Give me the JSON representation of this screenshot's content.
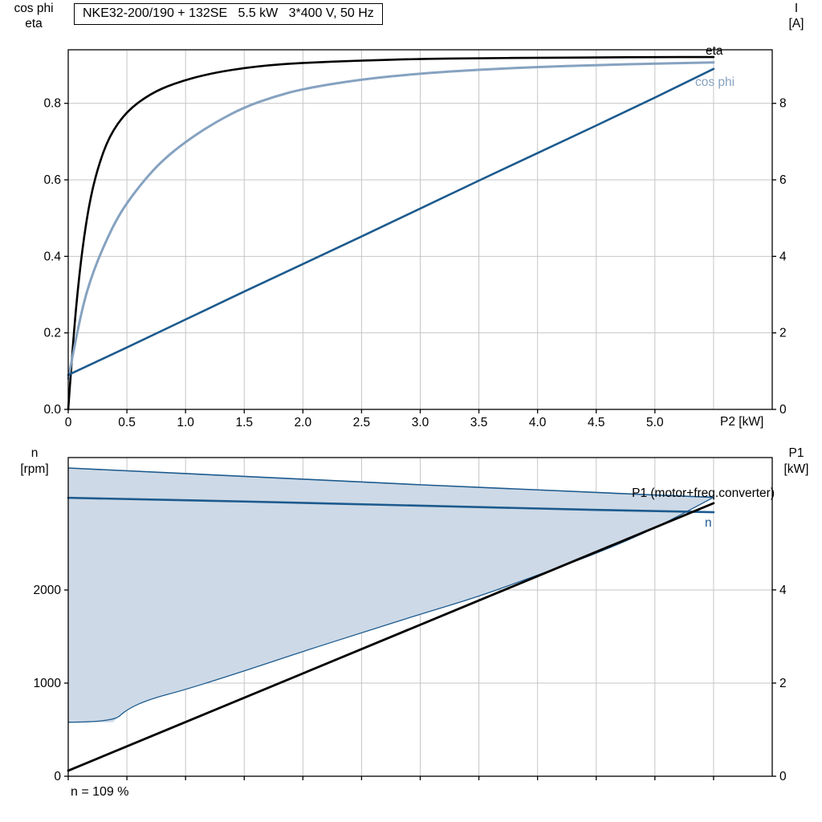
{
  "title_box": "NKE32-200/190 + 132SE   5.5 kW   3*400 V, 50 Hz",
  "footnote": "n = 109 %",
  "colors": {
    "black": "#000000",
    "dark_blue": "#1c5a8e",
    "cosphi_blue": "#86a2c0",
    "fill_blue": "#cdd9e6",
    "grid": "#c6c6c6",
    "axis": "#000000"
  },
  "chart_data": [
    {
      "id": "top",
      "type": "line",
      "xlabel": "P2 [kW]",
      "left_axis_title": [
        "cos phi",
        "eta"
      ],
      "right_axis_title": [
        "I",
        "[A]"
      ],
      "xlim": [
        0,
        6.0
      ],
      "x_ticks": [
        0,
        0.5,
        1.0,
        1.5,
        2.0,
        2.5,
        3.0,
        3.5,
        4.0,
        4.5,
        5.0
      ],
      "x_tick_labels": [
        "0",
        "0.5",
        "1.0",
        "1.5",
        "2.0",
        "2.5",
        "3.0",
        "3.5",
        "4.0",
        "4.5",
        "5.0"
      ],
      "x_grid": [
        0.5,
        1.0,
        1.5,
        2.0,
        2.5,
        3.0,
        3.5,
        4.0,
        4.5,
        5.0,
        5.5
      ],
      "left_ylim": [
        0,
        0.94
      ],
      "left_ticks": [
        0.0,
        0.2,
        0.4,
        0.6,
        0.8
      ],
      "left_tick_labels": [
        "0.0",
        "0.2",
        "0.4",
        "0.6",
        "0.8"
      ],
      "right_ylim": [
        0,
        9.4
      ],
      "right_ticks": [
        0,
        2,
        4,
        6,
        8
      ],
      "right_tick_labels": [
        "0",
        "2",
        "4",
        "6",
        "8"
      ],
      "grid": true,
      "legend_position": "curve-end-labels",
      "series": [
        {
          "name": "eta",
          "label": "eta",
          "axis": "left",
          "color_key": "black",
          "width": 2.6,
          "smooth": true,
          "x": [
            0,
            0.03,
            0.07,
            0.12,
            0.18,
            0.25,
            0.35,
            0.5,
            0.7,
            0.9,
            1.2,
            1.6,
            2.0,
            2.5,
            3.0,
            3.5,
            4.0,
            4.5,
            5.0,
            5.5
          ],
          "y": [
            0,
            0.13,
            0.28,
            0.42,
            0.54,
            0.63,
            0.715,
            0.78,
            0.825,
            0.852,
            0.878,
            0.897,
            0.906,
            0.912,
            0.916,
            0.918,
            0.919,
            0.92,
            0.921,
            0.921
          ]
        },
        {
          "name": "cos phi",
          "label": "cos phi",
          "axis": "left",
          "color_key": "cosphi_blue",
          "width": 3,
          "smooth": true,
          "x": [
            0,
            0.05,
            0.1,
            0.15,
            0.22,
            0.3,
            0.4,
            0.5,
            0.65,
            0.8,
            1.0,
            1.25,
            1.5,
            1.75,
            2.0,
            2.5,
            3.0,
            3.5,
            4.0,
            4.5,
            5.0,
            5.5
          ],
          "y": [
            0.08,
            0.16,
            0.235,
            0.3,
            0.365,
            0.425,
            0.49,
            0.54,
            0.6,
            0.65,
            0.7,
            0.75,
            0.79,
            0.817,
            0.838,
            0.863,
            0.878,
            0.888,
            0.895,
            0.9,
            0.904,
            0.907
          ]
        },
        {
          "name": "I",
          "label": "",
          "axis": "right",
          "color_key": "dark_blue",
          "width": 2.6,
          "smooth": false,
          "x": [
            0,
            0.5,
            1.0,
            1.5,
            2.0,
            2.5,
            3.0,
            3.5,
            4.0,
            4.5,
            5.0,
            5.5
          ],
          "y": [
            0.9,
            1.62,
            2.35,
            3.08,
            3.8,
            4.52,
            5.25,
            5.98,
            6.7,
            7.42,
            8.15,
            8.9
          ]
        }
      ]
    },
    {
      "id": "bottom",
      "type": "line",
      "xlabel": "",
      "left_axis_title": [
        "n",
        "[rpm]"
      ],
      "right_axis_title": [
        "P1",
        "[kW]"
      ],
      "xlim": [
        0,
        6.0
      ],
      "x_ticks": [
        0,
        0.5,
        1.0,
        1.5,
        2.0,
        2.5,
        3.0,
        3.5,
        4.0,
        4.5,
        5.0,
        5.5
      ],
      "x_tick_labels": [],
      "x_grid": [
        0.5,
        1.0,
        1.5,
        2.0,
        2.5,
        3.0,
        3.5,
        4.0,
        4.5,
        5.0,
        5.5
      ],
      "left_ylim": [
        0,
        3422
      ],
      "left_ticks": [
        0,
        1000,
        2000
      ],
      "left_tick_labels": [
        "0",
        "1000",
        "2000"
      ],
      "right_ylim": [
        0,
        6.84
      ],
      "right_ticks": [
        0,
        2,
        4
      ],
      "right_tick_labels": [
        "0",
        "2",
        "4"
      ],
      "grid": true,
      "area": {
        "name": "speed-range-area",
        "fill_key": "fill_blue",
        "stroke_key": "dark_blue",
        "upper_x": [
          0,
          1.0,
          2.0,
          3.0,
          4.0,
          5.0,
          5.5
        ],
        "upper_y": [
          3310,
          3250,
          3190,
          3130,
          3075,
          3020,
          2995
        ],
        "lower_x": [
          0,
          0.38,
          0.5,
          0.7,
          1.0,
          1.5,
          2.0,
          2.5,
          3.0,
          3.5,
          4.0,
          4.5,
          5.0,
          5.5
        ],
        "lower_y": [
          580,
          580,
          720,
          830,
          930,
          1130,
          1340,
          1540,
          1740,
          1930,
          2160,
          2390,
          2660,
          2995
        ]
      },
      "series": [
        {
          "name": "n",
          "label": "n",
          "axis": "left",
          "color_key": "dark_blue",
          "width": 2.6,
          "smooth": false,
          "x": [
            0,
            1.5,
            3.0,
            4.5,
            5.5
          ],
          "y": [
            2990,
            2950,
            2905,
            2860,
            2835
          ]
        },
        {
          "name": "P1",
          "label": "P1 (motor+freq.converter)",
          "axis": "right",
          "color_key": "black",
          "width": 2.8,
          "smooth": false,
          "x": [
            0,
            5.5
          ],
          "y": [
            0.12,
            5.86
          ]
        }
      ]
    }
  ]
}
